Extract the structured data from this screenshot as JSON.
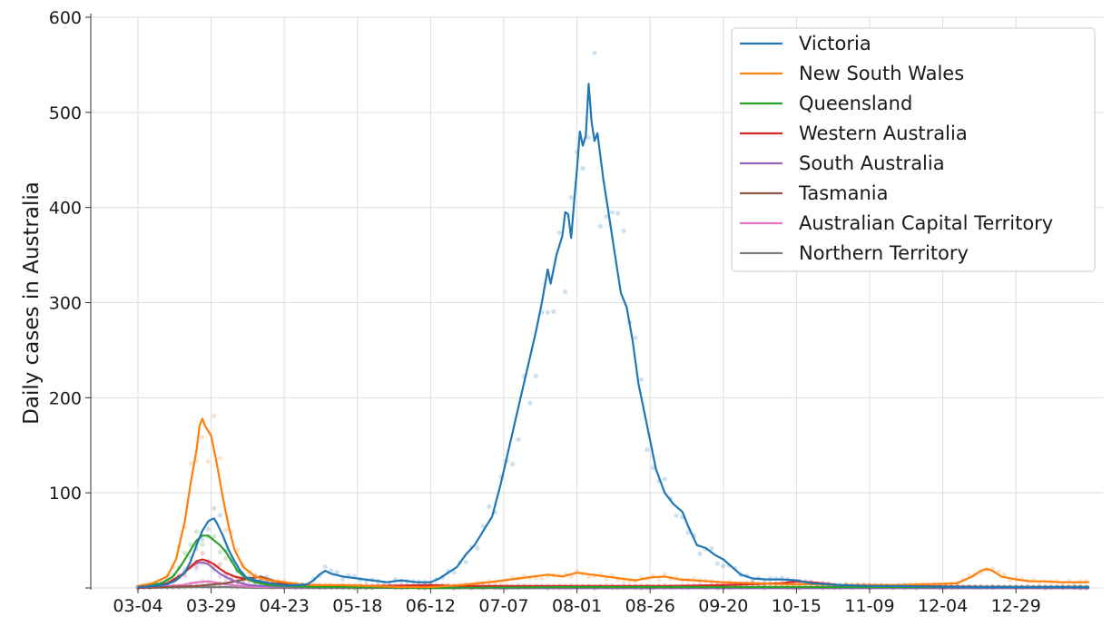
{
  "chart_data": {
    "type": "line",
    "title": "",
    "xlabel": "",
    "ylabel": "Daily cases in Australia",
    "ylim": [
      0,
      600
    ],
    "y_ticks": [
      0,
      100,
      200,
      300,
      400,
      500,
      600
    ],
    "y_tick_labels": [
      "",
      "100",
      "200",
      "300",
      "400",
      "500",
      "600"
    ],
    "x_tick_labels": [
      "03-04",
      "03-29",
      "04-23",
      "05-18",
      "06-12",
      "07-07",
      "08-01",
      "08-26",
      "09-20",
      "10-15",
      "11-09",
      "12-04",
      "12-29"
    ],
    "x_tick_days": [
      0,
      25,
      50,
      75,
      100,
      125,
      150,
      175,
      200,
      225,
      250,
      275,
      300
    ],
    "x_range_days": [
      0,
      325
    ],
    "grid": true,
    "legend_position": "top-right",
    "markers": "scatter of raw daily counts behind smoothed lines",
    "series": [
      {
        "name": "Victoria",
        "color": "#1f77b4",
        "points": [
          [
            0,
            1
          ],
          [
            5,
            2
          ],
          [
            10,
            4
          ],
          [
            13,
            8
          ],
          [
            16,
            16
          ],
          [
            18,
            28
          ],
          [
            20,
            45
          ],
          [
            22,
            60
          ],
          [
            24,
            70
          ],
          [
            25,
            72
          ],
          [
            26,
            73
          ],
          [
            27,
            68
          ],
          [
            29,
            55
          ],
          [
            31,
            40
          ],
          [
            33,
            28
          ],
          [
            35,
            18
          ],
          [
            37,
            11
          ],
          [
            40,
            8
          ],
          [
            45,
            5
          ],
          [
            50,
            3
          ],
          [
            55,
            3
          ],
          [
            58,
            4
          ],
          [
            60,
            8
          ],
          [
            62,
            14
          ],
          [
            64,
            18
          ],
          [
            66,
            15
          ],
          [
            70,
            12
          ],
          [
            75,
            10
          ],
          [
            80,
            8
          ],
          [
            85,
            6
          ],
          [
            90,
            8
          ],
          [
            95,
            6
          ],
          [
            100,
            6
          ],
          [
            103,
            10
          ],
          [
            106,
            16
          ],
          [
            109,
            22
          ],
          [
            112,
            35
          ],
          [
            115,
            45
          ],
          [
            118,
            60
          ],
          [
            121,
            75
          ],
          [
            124,
            110
          ],
          [
            127,
            150
          ],
          [
            130,
            190
          ],
          [
            133,
            230
          ],
          [
            136,
            270
          ],
          [
            138,
            300
          ],
          [
            140,
            335
          ],
          [
            141,
            320
          ],
          [
            143,
            350
          ],
          [
            145,
            370
          ],
          [
            146,
            395
          ],
          [
            147,
            393
          ],
          [
            148,
            368
          ],
          [
            149,
            405
          ],
          [
            150,
            440
          ],
          [
            151,
            480
          ],
          [
            152,
            465
          ],
          [
            153,
            475
          ],
          [
            154,
            530
          ],
          [
            155,
            490
          ],
          [
            156,
            470
          ],
          [
            157,
            478
          ],
          [
            159,
            430
          ],
          [
            161,
            390
          ],
          [
            163,
            350
          ],
          [
            165,
            310
          ],
          [
            167,
            295
          ],
          [
            169,
            260
          ],
          [
            171,
            215
          ],
          [
            174,
            170
          ],
          [
            177,
            125
          ],
          [
            180,
            100
          ],
          [
            183,
            88
          ],
          [
            186,
            80
          ],
          [
            188,
            65
          ],
          [
            191,
            45
          ],
          [
            194,
            42
          ],
          [
            197,
            35
          ],
          [
            200,
            30
          ],
          [
            203,
            22
          ],
          [
            206,
            14
          ],
          [
            210,
            10
          ],
          [
            215,
            9
          ],
          [
            220,
            9
          ],
          [
            225,
            8
          ],
          [
            230,
            5
          ],
          [
            240,
            3
          ],
          [
            250,
            2
          ],
          [
            260,
            2
          ],
          [
            280,
            1
          ],
          [
            300,
            1
          ],
          [
            325,
            1
          ]
        ]
      },
      {
        "name": "New South Wales",
        "color": "#ff7f0e",
        "points": [
          [
            0,
            2
          ],
          [
            5,
            5
          ],
          [
            10,
            12
          ],
          [
            13,
            30
          ],
          [
            16,
            70
          ],
          [
            18,
            110
          ],
          [
            20,
            145
          ],
          [
            21,
            170
          ],
          [
            22,
            178
          ],
          [
            23,
            170
          ],
          [
            24,
            165
          ],
          [
            25,
            160
          ],
          [
            27,
            130
          ],
          [
            29,
            95
          ],
          [
            31,
            65
          ],
          [
            33,
            40
          ],
          [
            36,
            22
          ],
          [
            40,
            12
          ],
          [
            45,
            8
          ],
          [
            50,
            6
          ],
          [
            55,
            4
          ],
          [
            60,
            3
          ],
          [
            70,
            3
          ],
          [
            80,
            2
          ],
          [
            90,
            1
          ],
          [
            100,
            1
          ],
          [
            110,
            3
          ],
          [
            120,
            6
          ],
          [
            130,
            10
          ],
          [
            140,
            14
          ],
          [
            145,
            12
          ],
          [
            150,
            16
          ],
          [
            155,
            14
          ],
          [
            160,
            12
          ],
          [
            165,
            10
          ],
          [
            170,
            8
          ],
          [
            175,
            11
          ],
          [
            180,
            12
          ],
          [
            185,
            9
          ],
          [
            190,
            8
          ],
          [
            195,
            7
          ],
          [
            200,
            6
          ],
          [
            210,
            5
          ],
          [
            220,
            4
          ],
          [
            230,
            4
          ],
          [
            240,
            3
          ],
          [
            250,
            3
          ],
          [
            260,
            3
          ],
          [
            270,
            4
          ],
          [
            280,
            5
          ],
          [
            285,
            12
          ],
          [
            288,
            18
          ],
          [
            290,
            20
          ],
          [
            292,
            18
          ],
          [
            295,
            12
          ],
          [
            300,
            9
          ],
          [
            305,
            7
          ],
          [
            310,
            7
          ],
          [
            315,
            6
          ],
          [
            320,
            6
          ],
          [
            325,
            6
          ]
        ]
      },
      {
        "name": "Queensland",
        "color": "#2ca02c",
        "points": [
          [
            0,
            1
          ],
          [
            8,
            5
          ],
          [
            12,
            12
          ],
          [
            15,
            25
          ],
          [
            18,
            40
          ],
          [
            20,
            50
          ],
          [
            22,
            55
          ],
          [
            24,
            55
          ],
          [
            26,
            50
          ],
          [
            28,
            45
          ],
          [
            30,
            38
          ],
          [
            32,
            28
          ],
          [
            34,
            18
          ],
          [
            37,
            10
          ],
          [
            40,
            6
          ],
          [
            45,
            3
          ],
          [
            50,
            2
          ],
          [
            60,
            1
          ],
          [
            100,
            0
          ],
          [
            150,
            1
          ],
          [
            200,
            1
          ],
          [
            250,
            1
          ],
          [
            300,
            1
          ],
          [
            325,
            1
          ]
        ]
      },
      {
        "name": "Western Australia",
        "color": "#d62728",
        "points": [
          [
            0,
            0
          ],
          [
            10,
            5
          ],
          [
            15,
            14
          ],
          [
            18,
            22
          ],
          [
            20,
            28
          ],
          [
            22,
            30
          ],
          [
            24,
            28
          ],
          [
            26,
            25
          ],
          [
            28,
            20
          ],
          [
            30,
            16
          ],
          [
            33,
            12
          ],
          [
            36,
            10
          ],
          [
            40,
            8
          ],
          [
            45,
            5
          ],
          [
            50,
            4
          ],
          [
            55,
            3
          ],
          [
            60,
            2
          ],
          [
            80,
            2
          ],
          [
            100,
            3
          ],
          [
            110,
            2
          ],
          [
            150,
            2
          ],
          [
            180,
            2
          ],
          [
            200,
            3
          ],
          [
            220,
            5
          ],
          [
            225,
            7
          ],
          [
            230,
            6
          ],
          [
            240,
            3
          ],
          [
            260,
            2
          ],
          [
            300,
            1
          ],
          [
            325,
            1
          ]
        ]
      },
      {
        "name": "South Australia",
        "color": "#9467bd",
        "points": [
          [
            0,
            0
          ],
          [
            10,
            4
          ],
          [
            15,
            14
          ],
          [
            18,
            22
          ],
          [
            20,
            26
          ],
          [
            22,
            27
          ],
          [
            24,
            25
          ],
          [
            26,
            20
          ],
          [
            28,
            15
          ],
          [
            31,
            10
          ],
          [
            34,
            6
          ],
          [
            38,
            3
          ],
          [
            42,
            2
          ],
          [
            50,
            1
          ],
          [
            100,
            0
          ],
          [
            325,
            0
          ]
        ]
      },
      {
        "name": "Tasmania",
        "color": "#8c564b",
        "points": [
          [
            0,
            0
          ],
          [
            20,
            2
          ],
          [
            30,
            5
          ],
          [
            38,
            10
          ],
          [
            42,
            12
          ],
          [
            46,
            8
          ],
          [
            50,
            4
          ],
          [
            55,
            2
          ],
          [
            60,
            1
          ],
          [
            100,
            0
          ],
          [
            325,
            0
          ]
        ]
      },
      {
        "name": "Australian Capital Territory",
        "color": "#e377c2",
        "points": [
          [
            0,
            0
          ],
          [
            15,
            3
          ],
          [
            20,
            6
          ],
          [
            24,
            7
          ],
          [
            28,
            5
          ],
          [
            32,
            3
          ],
          [
            40,
            1
          ],
          [
            100,
            0
          ],
          [
            325,
            0
          ]
        ]
      },
      {
        "name": "Northern Territory",
        "color": "#7f7f7f",
        "points": [
          [
            0,
            0
          ],
          [
            20,
            1
          ],
          [
            30,
            1
          ],
          [
            40,
            0
          ],
          [
            325,
            0
          ]
        ]
      }
    ]
  }
}
